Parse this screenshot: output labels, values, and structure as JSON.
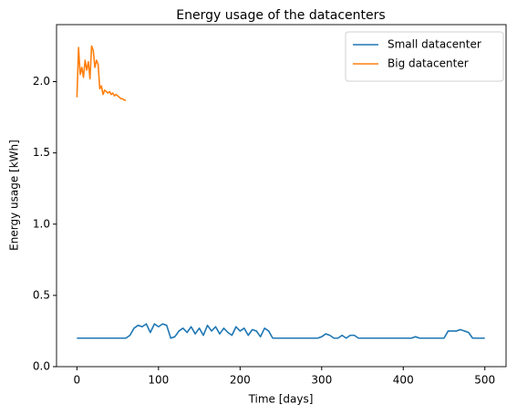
{
  "chart_data": {
    "type": "line",
    "title": "Energy usage of the datacenters",
    "xlabel": "Time [days]",
    "ylabel": "Energy usage [kWh]",
    "xlim": [
      -25,
      526
    ],
    "ylim": [
      0,
      2.4
    ],
    "xticks": [
      0,
      100,
      200,
      300,
      400,
      500
    ],
    "yticks": [
      {
        "value": 0,
        "label": "0.0"
      },
      0.5,
      {
        "value": 1,
        "label": "1.0"
      },
      1.5,
      {
        "value": 2,
        "label": "2.0"
      }
    ],
    "legend": "upper right",
    "series": [
      {
        "name": "Small datacenter",
        "color": "#1f77b4",
        "x": [
          0,
          5,
          10,
          15,
          20,
          25,
          30,
          35,
          40,
          45,
          50,
          55,
          60,
          65,
          70,
          75,
          80,
          85,
          90,
          95,
          100,
          105,
          110,
          115,
          120,
          125,
          130,
          135,
          140,
          145,
          150,
          155,
          160,
          165,
          170,
          175,
          180,
          185,
          190,
          195,
          200,
          205,
          210,
          215,
          220,
          225,
          230,
          235,
          240,
          245,
          250,
          255,
          260,
          265,
          270,
          275,
          280,
          285,
          290,
          295,
          300,
          305,
          310,
          315,
          320,
          325,
          330,
          335,
          340,
          345,
          350,
          355,
          360,
          365,
          370,
          375,
          380,
          385,
          390,
          395,
          400,
          405,
          410,
          415,
          420,
          425,
          430,
          435,
          440,
          445,
          450,
          455,
          460,
          465,
          470,
          475,
          480,
          485,
          490,
          495,
          500
        ],
        "values": [
          0.2,
          0.2,
          0.2,
          0.2,
          0.2,
          0.2,
          0.2,
          0.2,
          0.2,
          0.2,
          0.2,
          0.2,
          0.2,
          0.22,
          0.27,
          0.29,
          0.28,
          0.3,
          0.24,
          0.3,
          0.28,
          0.3,
          0.29,
          0.2,
          0.21,
          0.25,
          0.27,
          0.24,
          0.28,
          0.23,
          0.27,
          0.22,
          0.29,
          0.25,
          0.28,
          0.23,
          0.27,
          0.24,
          0.22,
          0.28,
          0.25,
          0.27,
          0.22,
          0.26,
          0.25,
          0.21,
          0.27,
          0.25,
          0.2,
          0.2,
          0.2,
          0.2,
          0.2,
          0.2,
          0.2,
          0.2,
          0.2,
          0.2,
          0.2,
          0.2,
          0.21,
          0.23,
          0.22,
          0.2,
          0.2,
          0.22,
          0.2,
          0.22,
          0.22,
          0.2,
          0.2,
          0.2,
          0.2,
          0.2,
          0.2,
          0.2,
          0.2,
          0.2,
          0.2,
          0.2,
          0.2,
          0.2,
          0.2,
          0.21,
          0.2,
          0.2,
          0.2,
          0.2,
          0.2,
          0.2,
          0.2,
          0.25,
          0.25,
          0.25,
          0.26,
          0.25,
          0.24,
          0.2,
          0.2,
          0.2,
          0.2
        ]
      },
      {
        "name": "Big datacenter",
        "color": "#ff7f0e",
        "x": [
          0,
          2,
          4,
          6,
          8,
          10,
          12,
          14,
          16,
          18,
          20,
          22,
          24,
          26,
          28,
          30,
          32,
          34,
          36,
          38,
          40,
          42,
          44,
          46,
          48,
          50,
          52,
          54,
          56,
          58,
          60
        ],
        "values": [
          1.89,
          2.24,
          2.05,
          2.1,
          2.03,
          2.15,
          2.08,
          2.14,
          2.02,
          2.25,
          2.22,
          2.1,
          2.15,
          2.12,
          1.95,
          1.97,
          1.91,
          1.94,
          1.93,
          1.92,
          1.93,
          1.91,
          1.92,
          1.9,
          1.91,
          1.9,
          1.89,
          1.88,
          1.88,
          1.87,
          1.87
        ]
      }
    ]
  }
}
